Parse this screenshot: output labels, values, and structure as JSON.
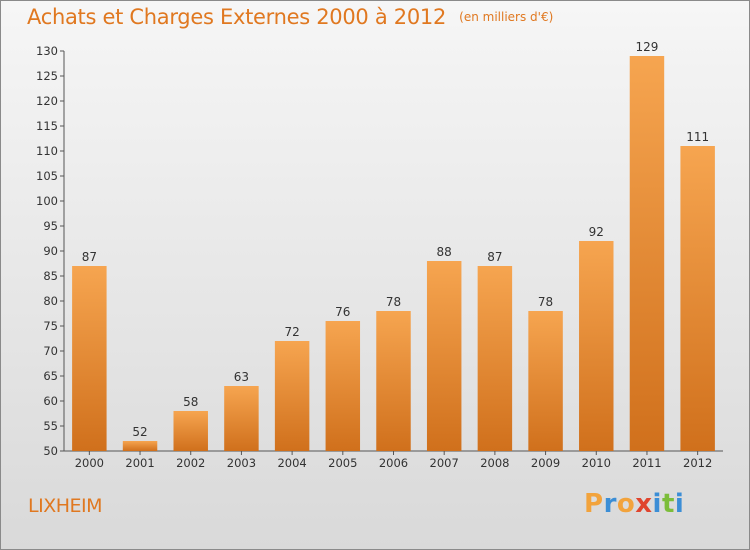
{
  "header": {
    "title": "Achats et Charges Externes 2000 à 2012",
    "unit": "(en milliers d'€)"
  },
  "footer": {
    "commune": "LIXHEIM",
    "logo": {
      "letters": [
        "P",
        "r",
        "o",
        "x",
        "i",
        "t",
        "i"
      ],
      "colors": [
        "#f2a33c",
        "#3b8ed6",
        "#f2a33c",
        "#e0452e",
        "#3b8ed6",
        "#7cbd3a",
        "#3b8ed6"
      ]
    }
  },
  "colors": {
    "accent": "#e07820",
    "bar_top": "#f6a550",
    "bar_bottom": "#d0701c"
  },
  "chart_data": {
    "type": "bar",
    "title": "Achats et Charges Externes 2000 à 2012",
    "subtitle": "(en milliers d'€)",
    "categories": [
      "2000",
      "2001",
      "2002",
      "2003",
      "2004",
      "2005",
      "2006",
      "2007",
      "2008",
      "2009",
      "2010",
      "2011",
      "2012"
    ],
    "values": [
      87,
      52,
      58,
      63,
      72,
      76,
      78,
      88,
      87,
      78,
      92,
      129,
      111
    ],
    "ylim": [
      50,
      130
    ],
    "yticks": [
      50,
      55,
      60,
      65,
      70,
      75,
      80,
      85,
      90,
      95,
      100,
      105,
      110,
      115,
      120,
      125,
      130
    ],
    "grid": false,
    "data_labels": true
  }
}
